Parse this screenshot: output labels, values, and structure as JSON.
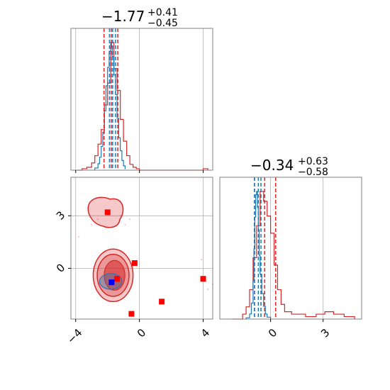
{
  "colors": {
    "red": "#d62728",
    "blue": "#1f77b4",
    "marker_red": "#ff0000",
    "marker_blue": "#0000ff",
    "grid": "#b0b0b0",
    "frame": "#808080"
  },
  "titles": [
    {
      "main": "−1.77",
      "sup": "+0.41",
      "sub": "−0.45"
    },
    {
      "main": "−0.34",
      "sup": "+0.63",
      "sub": "−0.58"
    }
  ],
  "chart_data": {
    "type": "corner",
    "parameters": [
      {
        "range": [
          -4.3,
          4.6
        ],
        "ticks": [
          -4,
          0,
          4
        ],
        "tick_labels": [
          "−4",
          "0",
          "4"
        ],
        "median": -1.77,
        "q_low": -2.22,
        "q_high": -1.36,
        "hist_red": [
          [
            -3.9,
            0
          ],
          [
            -3.6,
            1
          ],
          [
            -3.3,
            2
          ],
          [
            -3.0,
            5
          ],
          [
            -2.8,
            10
          ],
          [
            -2.6,
            18
          ],
          [
            -2.4,
            28
          ],
          [
            -2.2,
            45
          ],
          [
            -2.0,
            60
          ],
          [
            -1.8,
            88
          ],
          [
            -1.6,
            70
          ],
          [
            -1.4,
            55
          ],
          [
            -1.2,
            35
          ],
          [
            -1.0,
            20
          ],
          [
            -0.8,
            10
          ],
          [
            -0.6,
            4
          ],
          [
            -0.4,
            2
          ],
          [
            -0.2,
            1
          ],
          [
            0.0,
            0
          ],
          [
            4.0,
            1
          ],
          [
            4.3,
            0
          ]
        ],
        "hist_blue": [
          [
            -2.8,
            2
          ],
          [
            -2.6,
            6
          ],
          [
            -2.5,
            12
          ],
          [
            -2.4,
            22
          ],
          [
            -2.3,
            35
          ],
          [
            -2.2,
            55
          ],
          [
            -2.1,
            78
          ],
          [
            -2.0,
            95
          ],
          [
            -1.9,
            110
          ],
          [
            -1.8,
            118
          ],
          [
            -1.75,
            114
          ],
          [
            -1.7,
            105
          ],
          [
            -1.6,
            88
          ],
          [
            -1.5,
            70
          ],
          [
            -1.4,
            48
          ],
          [
            -1.3,
            30
          ],
          [
            -1.2,
            18
          ],
          [
            -1.1,
            9
          ],
          [
            -1.0,
            4
          ],
          [
            -0.9,
            1
          ]
        ],
        "median_blue": -1.68,
        "q_low_blue": -1.88,
        "q_high_blue": -1.5
      },
      {
        "range": [
          -2.9,
          5.2
        ],
        "ticks": [
          0,
          3
        ],
        "tick_labels": [
          "0",
          "3"
        ],
        "median": -0.34,
        "q_low": -0.92,
        "q_high": 0.29,
        "hist_red": [
          [
            -2.2,
            0
          ],
          [
            -1.6,
            2
          ],
          [
            -1.4,
            5
          ],
          [
            -1.2,
            12
          ],
          [
            -1.0,
            25
          ],
          [
            -0.8,
            38
          ],
          [
            -0.6,
            52
          ],
          [
            -0.4,
            48
          ],
          [
            -0.2,
            42
          ],
          [
            0.0,
            35
          ],
          [
            0.2,
            22
          ],
          [
            0.4,
            12
          ],
          [
            0.6,
            6
          ],
          [
            0.8,
            3
          ],
          [
            1.2,
            2
          ],
          [
            2.0,
            1
          ],
          [
            2.6,
            2
          ],
          [
            3.1,
            3
          ],
          [
            3.6,
            2
          ],
          [
            4.2,
            1
          ],
          [
            4.8,
            0
          ]
        ],
        "hist_blue": [
          [
            -1.4,
            2
          ],
          [
            -1.2,
            8
          ],
          [
            -1.1,
            25
          ],
          [
            -1.0,
            60
          ],
          [
            -0.95,
            110
          ],
          [
            -0.9,
            160
          ],
          [
            -0.85,
            195
          ],
          [
            -0.8,
            200
          ],
          [
            -0.75,
            175
          ],
          [
            -0.7,
            140
          ],
          [
            -0.65,
            100
          ],
          [
            -0.6,
            70
          ],
          [
            -0.5,
            40
          ],
          [
            -0.4,
            20
          ],
          [
            -0.3,
            8
          ],
          [
            -0.2,
            3
          ],
          [
            0.0,
            0
          ]
        ],
        "median_blue": -0.7,
        "q_low_blue": -0.92,
        "q_high_blue": -0.55
      }
    ],
    "joint": {
      "red_points": [
        [
          -2.0,
          3.2
        ],
        [
          -0.3,
          0.3
        ],
        [
          -1.4,
          -0.6
        ],
        [
          4.0,
          -0.6
        ],
        [
          1.4,
          -1.9
        ],
        [
          -0.5,
          -2.6
        ]
      ],
      "blue_points": [
        [
          -1.75,
          -0.8
        ]
      ]
    },
    "grid": true
  }
}
